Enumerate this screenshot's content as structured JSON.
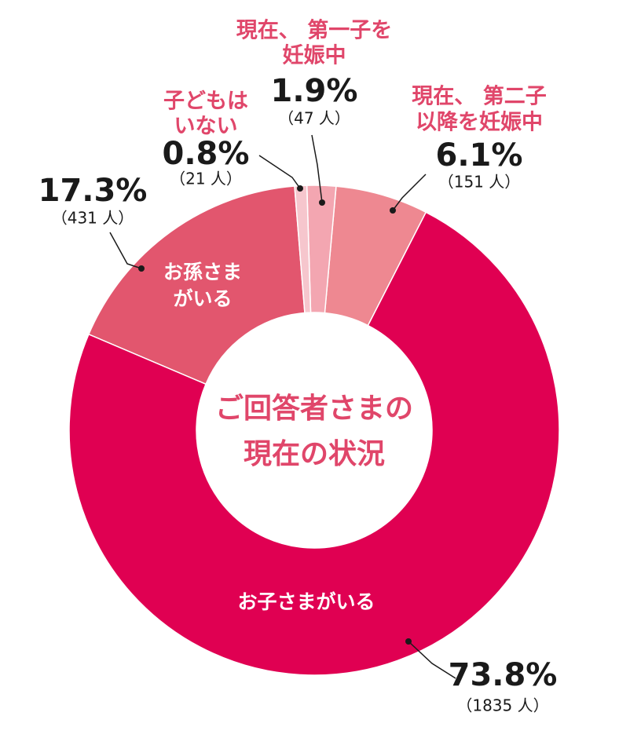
{
  "chart_data": {
    "type": "donut",
    "title": [
      "ご回答者さまの",
      "現在の状況"
    ],
    "categories": [
      [
        "子どもは",
        "いない"
      ],
      [
        "現在、 第一子を",
        "妊娠中"
      ],
      [
        "現在、 第二子",
        "以降を妊娠中"
      ],
      [
        "お子さまがいる"
      ],
      [
        "お孫さま",
        "がいる"
      ]
    ],
    "values": [
      0.8,
      1.9,
      6.1,
      73.8,
      17.3
    ],
    "value_labels": [
      "0.8%",
      "1.9%",
      "6.1%",
      "73.8%",
      "17.3%"
    ],
    "counts": [
      21,
      47,
      151,
      1835,
      431
    ],
    "count_labels": [
      "（21 人）",
      "（47 人）",
      "（151 人）",
      "（1835 人）",
      "（431 人）"
    ],
    "colors": [
      "#f6c6cd",
      "#f3a6b1",
      "#ee8891",
      "#e00052",
      "#e2566e"
    ]
  }
}
